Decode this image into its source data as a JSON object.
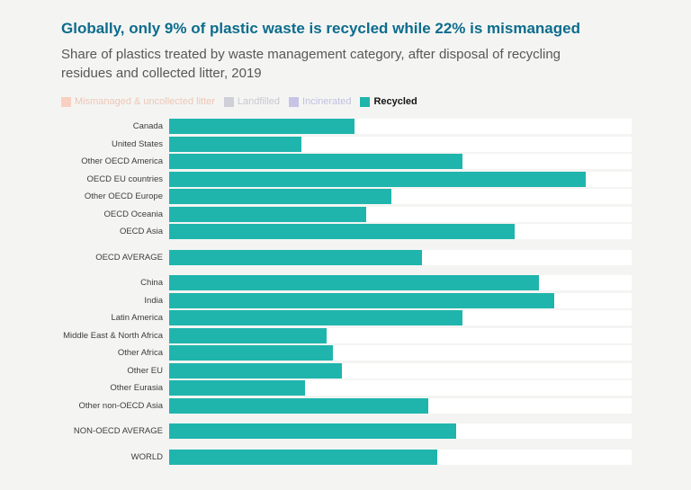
{
  "header": {
    "title": "Globally, only 9% of plastic waste is recycled while 22% is mismanaged",
    "subtitle": "Share of plastics treated by waste management category, after disposal of recycling residues and collected litter, 2019"
  },
  "legend": {
    "items": [
      {
        "label": "Mismanaged & uncollected litter",
        "color": "#f8cfc0",
        "label_color": "#eec5b6",
        "active": false
      },
      {
        "label": "Landfilled",
        "color": "#cfcfd8",
        "label_color": "#c7c7d0",
        "active": false
      },
      {
        "label": "Incinerated",
        "color": "#c7c4e6",
        "label_color": "#c1bee0",
        "active": false
      },
      {
        "label": "Recycled",
        "color": "#1fb5ad",
        "label_color": "#141414",
        "active": true
      }
    ]
  },
  "chart_data": {
    "type": "bar",
    "orientation": "horizontal",
    "visible_series": "Recycled",
    "value_unit": "% of plastic waste recycled",
    "bar_color": "#1fb5ad",
    "xlim": [
      0,
      15
    ],
    "grid": false,
    "groups": [
      {
        "rows": [
          {
            "label": "Canada",
            "value": 6
          },
          {
            "label": "United States",
            "value": 4.3
          },
          {
            "label": "Other OECD America",
            "value": 9.5
          },
          {
            "label": "OECD EU countries",
            "value": 13.5
          },
          {
            "label": "Other OECD Europe",
            "value": 7.2
          },
          {
            "label": "OECD Oceania",
            "value": 6.4
          },
          {
            "label": "OECD Asia",
            "value": 11.2
          }
        ]
      },
      {
        "rows": [
          {
            "label": "OECD AVERAGE",
            "value": 8.2
          }
        ]
      },
      {
        "rows": [
          {
            "label": "China",
            "value": 12
          },
          {
            "label": "India",
            "value": 12.5
          },
          {
            "label": "Latin America",
            "value": 9.5
          },
          {
            "label": "Middle East & North Africa",
            "value": 5.1
          },
          {
            "label": "Other Africa",
            "value": 5.3
          },
          {
            "label": "Other EU",
            "value": 5.6
          },
          {
            "label": "Other Eurasia",
            "value": 4.4
          },
          {
            "label": "Other non-OECD Asia",
            "value": 8.4
          }
        ]
      },
      {
        "rows": [
          {
            "label": "NON-OECD AVERAGE",
            "value": 9.3
          }
        ]
      },
      {
        "rows": [
          {
            "label": "WORLD",
            "value": 8.7
          }
        ]
      }
    ]
  },
  "colors": {
    "title": "#0d6c8d",
    "bar": "#1fb5ad",
    "row_track": "#ffffff",
    "page_background": "#f4f5f3"
  }
}
